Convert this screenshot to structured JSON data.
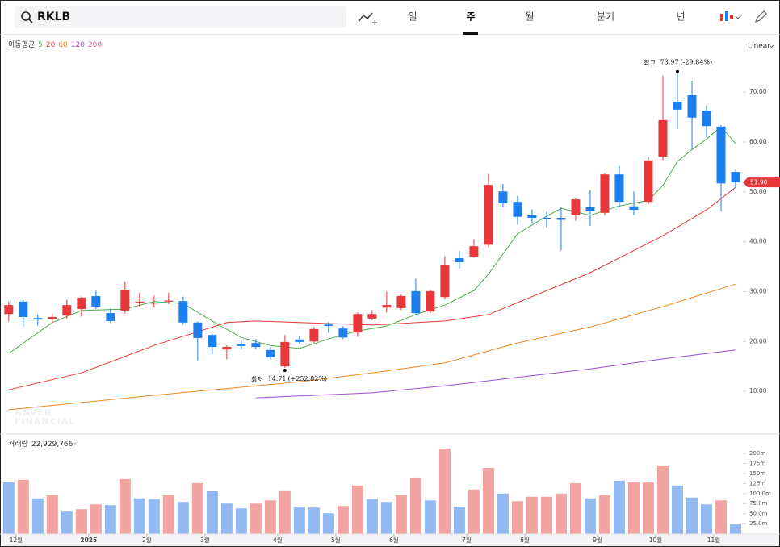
{
  "toolbar": {
    "symbol": "RKLB",
    "periods": [
      "일",
      "주",
      "월",
      "분기",
      "년"
    ],
    "selected": 1
  },
  "chart_data": [
    {
      "type": "candlestick",
      "scale": "Linear",
      "legend_title": "이동평균",
      "watermark": [
        "NAVER",
        "FINANCIAL"
      ],
      "up_color": "#e8373a",
      "down_color": "#1b7ff0",
      "xlim": [
        -0.6,
        50.5
      ],
      "ylim": [
        1.6,
        81.2
      ],
      "yticks": [
        {
          "value": 10,
          "label": "10.00"
        },
        {
          "value": 20,
          "label": "20.00"
        },
        {
          "value": 30,
          "label": "30.00"
        },
        {
          "value": 40,
          "label": "40.00"
        },
        {
          "value": 50,
          "label": "50.00"
        },
        {
          "value": 60,
          "label": "60.00"
        },
        {
          "value": 70,
          "label": "70.00"
        }
      ],
      "x": [
        0,
        1,
        2,
        3,
        4,
        5,
        6,
        7,
        8,
        9,
        10,
        11,
        12,
        13,
        14,
        15,
        16,
        17,
        18,
        19,
        20,
        21,
        22,
        23,
        24,
        25,
        26,
        27,
        28,
        29,
        30,
        31,
        32,
        33,
        34,
        35,
        36,
        37,
        38,
        39,
        40,
        41,
        42,
        43,
        44,
        45,
        46,
        47,
        48,
        49,
        50
      ],
      "open": [
        25.5,
        28.0,
        24.7,
        24.5,
        25.2,
        26.5,
        29.1,
        25.7,
        26.2,
        27.8,
        27.6,
        28.0,
        28.1,
        23.8,
        21.3,
        18.4,
        19.4,
        19.7,
        18.3,
        15.0,
        20.4,
        20.0,
        23.4,
        22.6,
        21.8,
        24.6,
        26.8,
        26.7,
        30.1,
        26.0,
        28.9,
        36.7,
        37.0,
        39.4,
        50.1,
        48.0,
        45.3,
        44.8,
        44.8,
        45.3,
        46.9,
        45.8,
        53.5,
        47.1,
        48.0,
        57.1,
        68.1,
        69.4,
        66.3,
        63.1,
        54.0
      ],
      "high": [
        28.0,
        28.3,
        25.4,
        25.6,
        28.4,
        29.0,
        30.2,
        26.6,
        32.0,
        29.8,
        29.2,
        29.8,
        29.0,
        24.0,
        21.5,
        19.2,
        20.2,
        20.5,
        18.9,
        21.3,
        21.2,
        22.9,
        24.0,
        23.1,
        25.8,
        26.3,
        30.0,
        29.4,
        32.6,
        30.3,
        37.1,
        38.2,
        40.5,
        53.6,
        51.6,
        49.2,
        46.5,
        46.0,
        46.9,
        48.8,
        50.4,
        53.8,
        55.2,
        50.1,
        57.1,
        73.3,
        73.97,
        72.3,
        67.3,
        63.4,
        54.6
      ],
      "low": [
        24.0,
        23.0,
        23.2,
        23.8,
        24.6,
        25.0,
        26.5,
        23.7,
        25.6,
        26.9,
        26.8,
        27.5,
        23.4,
        16.1,
        17.4,
        16.4,
        18.4,
        18.5,
        16.4,
        14.71,
        19.5,
        19.6,
        21.7,
        20.5,
        20.9,
        24.3,
        25.8,
        26.3,
        25.3,
        25.6,
        28.5,
        34.6,
        36.8,
        38.9,
        46.9,
        43.4,
        43.6,
        42.9,
        38.3,
        44.2,
        43.2,
        45.3,
        46.9,
        45.3,
        47.5,
        56.3,
        62.6,
        58.5,
        61.0,
        46.1,
        50.8
      ],
      "close": [
        27.3,
        24.9,
        24.4,
        24.9,
        27.3,
        28.8,
        27.0,
        24.1,
        30.4,
        28.0,
        27.8,
        28.2,
        23.8,
        20.7,
        18.9,
        18.9,
        19.1,
        18.9,
        16.8,
        19.9,
        19.9,
        22.5,
        23.1,
        20.8,
        25.5,
        25.5,
        27.3,
        29.1,
        25.7,
        30.1,
        35.4,
        35.9,
        39.1,
        51.4,
        47.7,
        45.0,
        44.8,
        44.5,
        44.4,
        48.5,
        46.1,
        53.5,
        48.0,
        46.4,
        56.3,
        64.4,
        66.5,
        64.9,
        63.2,
        51.7,
        51.9
      ],
      "series": [
        {
          "name": "5",
          "color": "#4caf50",
          "x": [
            0,
            3,
            5,
            8,
            10,
            12,
            14,
            16,
            18,
            20,
            22,
            24,
            26,
            28,
            30,
            32,
            33,
            35,
            37,
            38,
            40,
            42,
            44,
            45,
            46,
            47,
            48,
            49,
            50
          ],
          "values": [
            17.6,
            23.8,
            26.2,
            26.5,
            28.0,
            27.6,
            24.1,
            20.8,
            19.2,
            18.6,
            20.5,
            22.1,
            23.1,
            25.4,
            27.3,
            30.2,
            33.5,
            41.6,
            45.1,
            46.7,
            45.3,
            47.2,
            48.3,
            51.3,
            56.1,
            58.5,
            60.6,
            63.1,
            59.7
          ]
        },
        {
          "name": "20",
          "color": "#e53935",
          "x": [
            0,
            5,
            10,
            15,
            17,
            20,
            25,
            30,
            33,
            35,
            40,
            45,
            48,
            50
          ],
          "values": [
            10.3,
            13.7,
            19.2,
            23.8,
            24.1,
            23.8,
            23.3,
            24.1,
            25.4,
            27.8,
            33.8,
            41.2,
            46.4,
            50.9
          ]
        },
        {
          "name": "60",
          "color": "#f08a24",
          "x": [
            0,
            10,
            20,
            25,
            30,
            35,
            40,
            45,
            50
          ],
          "values": [
            6.3,
            9.2,
            11.9,
            13.7,
            15.7,
            19.7,
            22.9,
            27.0,
            31.5
          ]
        },
        {
          "name": "120",
          "color": "#9c4fd0",
          "x": [
            17,
            25,
            30,
            35,
            40,
            45,
            50
          ],
          "values": [
            8.7,
            9.7,
            11.1,
            12.8,
            14.5,
            16.5,
            18.3
          ]
        },
        {
          "name": "200",
          "color": "#e75a9a",
          "x": [],
          "values": []
        }
      ],
      "annotations": [
        {
          "text": "최고",
          "x": 46,
          "value": 73.97,
          "change": "(-29.84%)"
        },
        {
          "text": "최저",
          "x": 19,
          "value": 14.71,
          "change": "(+252.82%)"
        }
      ],
      "price_tag": {
        "value": 51.9,
        "label": "51.90"
      }
    },
    {
      "type": "bar",
      "title": "거래량",
      "latest": {
        "value": 22.929766,
        "label": "22,929,766"
      },
      "xlim": [
        -0.6,
        50.5
      ],
      "ylim": [
        0,
        234
      ],
      "yticks": [
        {
          "value": 25,
          "label": "25.0m"
        },
        {
          "value": 50,
          "label": "50.0m"
        },
        {
          "value": 75,
          "label": "75.0m"
        },
        {
          "value": 100,
          "label": "100.0m"
        },
        {
          "value": 125,
          "label": "125m"
        },
        {
          "value": 150,
          "label": "150m"
        },
        {
          "value": 175,
          "label": "175m"
        },
        {
          "value": 200,
          "label": "200m"
        }
      ],
      "xticks": [
        {
          "value": 0.5,
          "label": "12월"
        },
        {
          "value": 5.5,
          "label": "2025"
        },
        {
          "value": 9.5,
          "label": "2월"
        },
        {
          "value": 13.5,
          "label": "3월"
        },
        {
          "value": 18.5,
          "label": "4월"
        },
        {
          "value": 22.5,
          "label": "5월"
        },
        {
          "value": 26.5,
          "label": "6월"
        },
        {
          "value": 31.5,
          "label": "7월"
        },
        {
          "value": 35.5,
          "label": "8월"
        },
        {
          "value": 40.5,
          "label": "9월"
        },
        {
          "value": 44.5,
          "label": "10월"
        },
        {
          "value": 48.5,
          "label": "11월"
        }
      ],
      "x": [
        0,
        1,
        2,
        3,
        4,
        5,
        6,
        7,
        8,
        9,
        10,
        11,
        12,
        13,
        14,
        15,
        16,
        17,
        18,
        19,
        20,
        21,
        22,
        23,
        24,
        25,
        26,
        27,
        28,
        29,
        30,
        31,
        32,
        33,
        34,
        35,
        36,
        37,
        38,
        39,
        40,
        41,
        42,
        43,
        44,
        45,
        46,
        47,
        48,
        49,
        50
      ],
      "values": [
        128,
        134,
        88,
        96,
        57,
        61,
        73,
        71,
        136,
        88,
        86,
        96,
        79,
        126,
        106,
        75,
        63,
        75,
        83,
        108,
        67,
        65,
        51,
        69,
        120,
        86,
        79,
        96,
        140,
        83,
        212,
        67,
        110,
        164,
        100,
        81,
        92,
        92,
        100,
        126,
        88,
        96,
        132,
        128,
        128,
        170,
        120,
        90,
        73,
        83,
        23
      ],
      "colors": [
        "#93b9f2",
        "#f4a3a3",
        "#93b9f2",
        "#f4a3a3",
        "#93b9f2",
        "#f4a3a3",
        "#f4a3a3",
        "#93b9f2",
        "#f4a3a3",
        "#93b9f2",
        "#93b9f2",
        "#f4a3a3",
        "#93b9f2",
        "#f4a3a3",
        "#93b9f2",
        "#93b9f2",
        "#93b9f2",
        "#f4a3a3",
        "#f4a3a3",
        "#f4a3a3",
        "#93b9f2",
        "#93b9f2",
        "#93b9f2",
        "#f4a3a3",
        "#f4a3a3",
        "#93b9f2",
        "#93b9f2",
        "#f4a3a3",
        "#f4a3a3",
        "#93b9f2",
        "#f4a3a3",
        "#93b9f2",
        "#f4a3a3",
        "#f4a3a3",
        "#93b9f2",
        "#f4a3a3",
        "#f4a3a3",
        "#f4a3a3",
        "#f4a3a3",
        "#f4a3a3",
        "#93b9f2",
        "#f4a3a3",
        "#93b9f2",
        "#f4a3a3",
        "#f4a3a3",
        "#f4a3a3",
        "#93b9f2",
        "#93b9f2",
        "#93b9f2",
        "#f4a3a3",
        "#93b9f2"
      ]
    }
  ]
}
